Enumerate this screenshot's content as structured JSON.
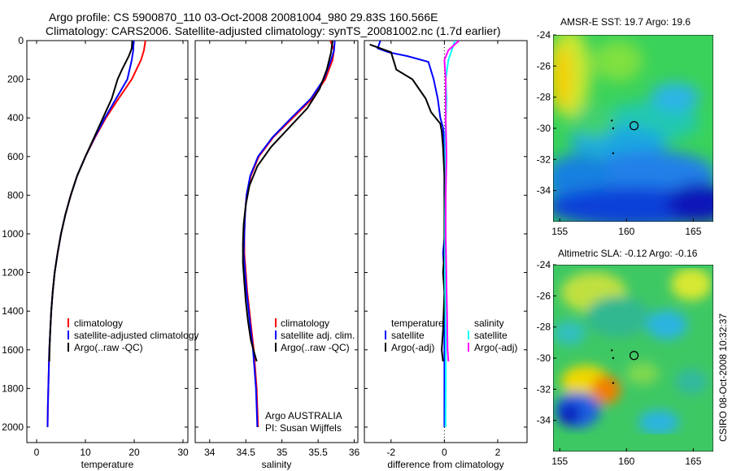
{
  "header": {
    "title_line1": "Argo profile: CS 5900870_110 03-Oct-2008 20081004_980 29.83S 160.566E",
    "title_line2": "Climatology: CARS2006. Satellite-adjusted climatology: synTS_20081002.nc (1.7d earlier)"
  },
  "colors": {
    "climatology": "#ff0000",
    "satellite": "#0000ff",
    "argo": "#000000",
    "sal_satellite": "#00ffff",
    "sal_argo": "#ff00ff"
  },
  "chart_data": [
    {
      "type": "line",
      "id": "temperature",
      "xlabel": "temperature",
      "ylabel": "",
      "xlim": [
        -2,
        31
      ],
      "ylim": [
        0,
        2080
      ],
      "y_reversed": true,
      "xticks": [
        0,
        10,
        20,
        30
      ],
      "yticks": [
        0,
        200,
        400,
        600,
        800,
        1000,
        1200,
        1400,
        1600,
        1800,
        2000
      ],
      "series": [
        {
          "name": "climatology",
          "color": "#ff0000",
          "points": [
            [
              22.3,
              0
            ],
            [
              22,
              50
            ],
            [
              21.4,
              100
            ],
            [
              19.5,
              200
            ],
            [
              16.8,
              300
            ],
            [
              14.2,
              400
            ],
            [
              12,
              500
            ],
            [
              10,
              600
            ],
            [
              8.3,
              700
            ],
            [
              7,
              800
            ],
            [
              5.9,
              900
            ],
            [
              5,
              1000
            ],
            [
              4.3,
              1100
            ],
            [
              3.7,
              1200
            ],
            [
              3.3,
              1300
            ],
            [
              3,
              1400
            ],
            [
              2.8,
              1500
            ],
            [
              2.6,
              1600
            ],
            [
              2.5,
              1700
            ],
            [
              2.4,
              1800
            ],
            [
              2.3,
              1900
            ],
            [
              2.25,
              2000
            ]
          ]
        },
        {
          "name": "satellite-adjusted climatology",
          "color": "#0000ff",
          "points": [
            [
              19.9,
              0
            ],
            [
              19.8,
              50
            ],
            [
              19.5,
              100
            ],
            [
              18.6,
              200
            ],
            [
              16.3,
              300
            ],
            [
              14,
              400
            ],
            [
              11.9,
              500
            ],
            [
              10,
              600
            ],
            [
              8.3,
              700
            ],
            [
              7,
              800
            ],
            [
              5.9,
              900
            ],
            [
              5,
              1000
            ],
            [
              4.3,
              1100
            ],
            [
              3.7,
              1200
            ],
            [
              3.3,
              1300
            ],
            [
              3,
              1400
            ],
            [
              2.8,
              1500
            ],
            [
              2.6,
              1600
            ],
            [
              2.5,
              1700
            ],
            [
              2.4,
              1800
            ],
            [
              2.3,
              1900
            ],
            [
              2.25,
              2000
            ]
          ]
        },
        {
          "name": "Argo(..raw -QC)",
          "color": "#000000",
          "points": [
            [
              19.6,
              0
            ],
            [
              19.5,
              40
            ],
            [
              18.9,
              80
            ],
            [
              17.5,
              150
            ],
            [
              16.6,
              200
            ],
            [
              15.4,
              300
            ],
            [
              13.6,
              400
            ],
            [
              11.8,
              500
            ],
            [
              10,
              600
            ],
            [
              8.3,
              700
            ],
            [
              7,
              800
            ],
            [
              5.9,
              900
            ],
            [
              5,
              1000
            ],
            [
              4.3,
              1100
            ],
            [
              3.7,
              1200
            ],
            [
              3.3,
              1300
            ],
            [
              3,
              1400
            ],
            [
              2.8,
              1500
            ],
            [
              2.65,
              1600
            ],
            [
              2.6,
              1660
            ]
          ]
        }
      ],
      "legend": [
        "climatology",
        "satellite-adjusted climatology",
        "Argo(..raw -QC)"
      ],
      "legend_position": "lower-right"
    },
    {
      "type": "line",
      "id": "salinity",
      "xlabel": "salinity",
      "xlim": [
        33.8,
        36.05
      ],
      "ylim": [
        0,
        2080
      ],
      "y_reversed": true,
      "xticks": [
        34,
        34.5,
        35,
        35.5,
        36
      ],
      "series": [
        {
          "name": "climatology",
          "color": "#ff0000",
          "points": [
            [
              35.67,
              0
            ],
            [
              35.72,
              50
            ],
            [
              35.7,
              100
            ],
            [
              35.6,
              200
            ],
            [
              35.42,
              300
            ],
            [
              35.15,
              400
            ],
            [
              34.88,
              500
            ],
            [
              34.68,
              600
            ],
            [
              34.57,
              700
            ],
            [
              34.51,
              800
            ],
            [
              34.49,
              900
            ],
            [
              34.48,
              1000
            ],
            [
              34.48,
              1100
            ],
            [
              34.5,
              1200
            ],
            [
              34.52,
              1300
            ],
            [
              34.55,
              1400
            ],
            [
              34.58,
              1500
            ],
            [
              34.61,
              1600
            ],
            [
              34.63,
              1700
            ],
            [
              34.65,
              1800
            ],
            [
              34.66,
              1900
            ],
            [
              34.67,
              2000
            ]
          ]
        },
        {
          "name": "satellite adj. clim.",
          "color": "#0000ff",
          "points": [
            [
              35.73,
              0
            ],
            [
              35.72,
              50
            ],
            [
              35.68,
              100
            ],
            [
              35.58,
              200
            ],
            [
              35.4,
              300
            ],
            [
              35.13,
              400
            ],
            [
              34.87,
              500
            ],
            [
              34.67,
              600
            ],
            [
              34.56,
              700
            ],
            [
              34.51,
              800
            ],
            [
              34.49,
              900
            ],
            [
              34.48,
              1000
            ],
            [
              34.47,
              1100
            ],
            [
              34.49,
              1200
            ],
            [
              34.51,
              1300
            ],
            [
              34.54,
              1400
            ],
            [
              34.57,
              1500
            ],
            [
              34.6,
              1600
            ],
            [
              34.62,
              1700
            ],
            [
              34.64,
              1800
            ],
            [
              34.65,
              1900
            ],
            [
              34.66,
              2000
            ]
          ]
        },
        {
          "name": "Argo(..raw -QC)",
          "color": "#000000",
          "points": [
            [
              35.7,
              0
            ],
            [
              35.68,
              60
            ],
            [
              35.62,
              150
            ],
            [
              35.52,
              250
            ],
            [
              35.35,
              350
            ],
            [
              35.1,
              450
            ],
            [
              34.85,
              550
            ],
            [
              34.66,
              650
            ],
            [
              34.55,
              750
            ],
            [
              34.5,
              850
            ],
            [
              34.47,
              950
            ],
            [
              34.46,
              1050
            ],
            [
              34.46,
              1150
            ],
            [
              34.48,
              1250
            ],
            [
              34.5,
              1350
            ],
            [
              34.53,
              1450
            ],
            [
              34.57,
              1550
            ],
            [
              34.62,
              1620
            ],
            [
              34.65,
              1660
            ]
          ]
        }
      ],
      "legend": [
        "climatology",
        "satellite adj. clim.",
        "Argo(..raw -QC)"
      ],
      "legend_position": "lower-right",
      "annotation": [
        "Argo AUSTRALIA",
        "PI: Susan Wijffels"
      ]
    },
    {
      "type": "line",
      "id": "difference",
      "xlabel": "difference from climatology",
      "xlim": [
        -3,
        3.1
      ],
      "ylim": [
        0,
        2080
      ],
      "y_reversed": true,
      "xticks": [
        -2,
        0,
        2
      ],
      "zero_line": true,
      "series": [
        {
          "name": "temperature satellite",
          "color": "#0000ff",
          "points": [
            [
              -2.4,
              0
            ],
            [
              -2.5,
              40
            ],
            [
              -2.1,
              60
            ],
            [
              -1.4,
              80
            ],
            [
              -0.6,
              110
            ],
            [
              -0.4,
              200
            ],
            [
              -0.25,
              300
            ],
            [
              -0.15,
              400
            ],
            [
              -0.05,
              450
            ],
            [
              -0.02,
              500
            ],
            [
              0,
              600
            ],
            [
              0,
              800
            ],
            [
              0.02,
              1000
            ],
            [
              -0.05,
              1100
            ],
            [
              0,
              1200
            ],
            [
              0,
              1600
            ],
            [
              0,
              2000
            ]
          ]
        },
        {
          "name": "temperature Argo(-adj)",
          "color": "#000000",
          "points": [
            [
              -2.8,
              20
            ],
            [
              -2,
              60
            ],
            [
              -1.8,
              150
            ],
            [
              -1.2,
              200
            ],
            [
              -0.7,
              300
            ],
            [
              -0.5,
              370
            ],
            [
              -0.15,
              430
            ],
            [
              -0.1,
              470
            ],
            [
              -0.05,
              550
            ],
            [
              0,
              700
            ],
            [
              0,
              900
            ],
            [
              0,
              1100
            ],
            [
              -0.05,
              1200
            ],
            [
              0,
              1300
            ],
            [
              -0.05,
              1500
            ],
            [
              -0.1,
              1600
            ],
            [
              -0.05,
              1660
            ]
          ]
        },
        {
          "name": "salinity satellite",
          "color": "#00ffff",
          "points": [
            [
              0.4,
              0
            ],
            [
              0.15,
              100
            ],
            [
              0.05,
              200
            ],
            [
              0.08,
              300
            ],
            [
              0.03,
              500
            ],
            [
              0.05,
              700
            ],
            [
              0.03,
              900
            ],
            [
              0.02,
              1200
            ],
            [
              0.05,
              1500
            ],
            [
              0.05,
              1800
            ],
            [
              0.04,
              2000
            ]
          ]
        },
        {
          "name": "salinity Argo(-adj)",
          "color": "#ff00ff",
          "points": [
            [
              0.55,
              0
            ],
            [
              0.15,
              50
            ],
            [
              0,
              100
            ],
            [
              0.05,
              200
            ],
            [
              0.05,
              400
            ],
            [
              0.08,
              600
            ],
            [
              0.05,
              800
            ],
            [
              0.05,
              1000
            ],
            [
              0.07,
              1200
            ],
            [
              0.1,
              1400
            ],
            [
              0.12,
              1600
            ],
            [
              0.15,
              1660
            ]
          ]
        }
      ],
      "legend_headers": [
        "temperature",
        "salinity"
      ],
      "legend": [
        "satellite",
        "Argo(-adj)",
        "satellite",
        "Argo(-adj)"
      ],
      "legend_position": "lower-center"
    },
    {
      "type": "heatmap",
      "id": "sst_map",
      "title": "AMSR-E SST: 19.7 Argo: 19.6",
      "xlim": [
        154.5,
        166.5
      ],
      "ylim": [
        -36,
        -24
      ],
      "xticks": [
        155,
        160,
        165
      ],
      "yticks": [
        -24,
        -26,
        -28,
        -30,
        -32,
        -34
      ],
      "marker": {
        "lon": 160.566,
        "lat": -29.83
      }
    },
    {
      "type": "heatmap",
      "id": "sla_map",
      "title": "Altimetric SLA: -0.12 Argo: -0.16",
      "xlim": [
        154.5,
        166.5
      ],
      "ylim": [
        -36,
        -24
      ],
      "xticks": [
        155,
        160,
        165
      ],
      "yticks": [
        -24,
        -26,
        -28,
        -30,
        -32,
        -34
      ],
      "marker": {
        "lon": 160.566,
        "lat": -29.83
      }
    }
  ],
  "footer": {
    "stamp": "CSIRO 08-Oct-2008 10:32:37"
  }
}
